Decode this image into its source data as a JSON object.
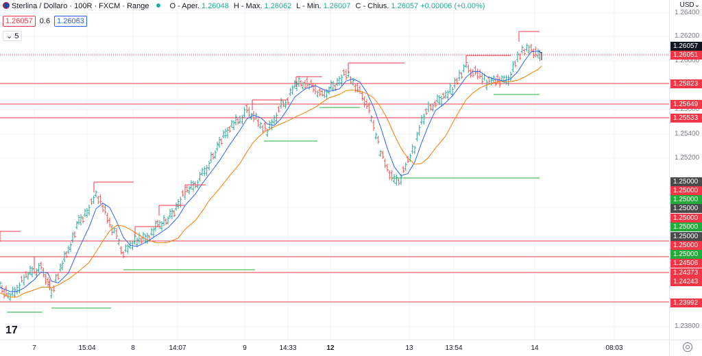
{
  "legend": {
    "title": "Sterlina / Dollaro · 100R · FXCM · Range",
    "open_label": "O - Aper.",
    "open_value": "1.26048",
    "high_label": "H - Max.",
    "high_value": "1.26062",
    "low_label": "L - Min.",
    "low_value": "1.26007",
    "close_label": "C - Chius.",
    "close_value": "1.26057",
    "change_value": "+0.00006 (+0.00%)"
  },
  "bidask": {
    "bid": "1.26057",
    "spread": "0.6",
    "ask": "1.26063"
  },
  "collapse_label": "5",
  "currency": "USD",
  "logo": "17",
  "price_axis": {
    "ticks": [
      "1.26400",
      "1.26200",
      "1.26000",
      "1.25600",
      "1.25400",
      "1.25200",
      "1.24800",
      "1.24000",
      "1.23800"
    ],
    "tags": [
      {
        "label": "1.26057",
        "color": "#131722"
      },
      {
        "label": "1.26051",
        "color": "#f23645"
      },
      {
        "label": "1.25823",
        "color": "#f23645"
      },
      {
        "label": "1.25649",
        "color": "#f23645"
      },
      {
        "label": "1.25533",
        "color": "#f23645"
      },
      {
        "label": "1.25000",
        "color": "#4a4a4a"
      },
      {
        "label": "1.25000",
        "color": "#f23645"
      },
      {
        "label": "1.25000",
        "color": "#22ab3a"
      },
      {
        "label": "1.25000",
        "color": "#4a4a4a"
      },
      {
        "label": "1.25000",
        "color": "#f23645"
      },
      {
        "label": "1.25000",
        "color": "#22ab3a"
      },
      {
        "label": "1.25000",
        "color": "#4a4a4a"
      },
      {
        "label": "1.25000",
        "color": "#f23645"
      },
      {
        "label": "1.25000",
        "color": "#22ab3a"
      },
      {
        "label": "1.24506",
        "color": "#f23645"
      },
      {
        "label": "1.24373",
        "color": "#f23645"
      },
      {
        "label": "1.24243",
        "color": "#f23645"
      },
      {
        "label": "1.23992",
        "color": "#f23645"
      }
    ]
  },
  "time_axis": {
    "labels": [
      {
        "text": "7",
        "bold": false
      },
      {
        "text": "15:04",
        "bold": false
      },
      {
        "text": "8",
        "bold": false
      },
      {
        "text": "14:07",
        "bold": false
      },
      {
        "text": "9",
        "bold": false
      },
      {
        "text": "14:33",
        "bold": false
      },
      {
        "text": "12",
        "bold": true
      },
      {
        "text": "13",
        "bold": false
      },
      {
        "text": "13:54",
        "bold": false
      },
      {
        "text": "14",
        "bold": false
      },
      {
        "text": "08:03",
        "bold": false
      }
    ]
  },
  "colors": {
    "up": "#26a69a",
    "down": "#ef5350",
    "ma_fast": "#2962ff",
    "ma_slow": "#f57c00",
    "resistance": "#f23645",
    "support": "#22ab3a"
  }
}
